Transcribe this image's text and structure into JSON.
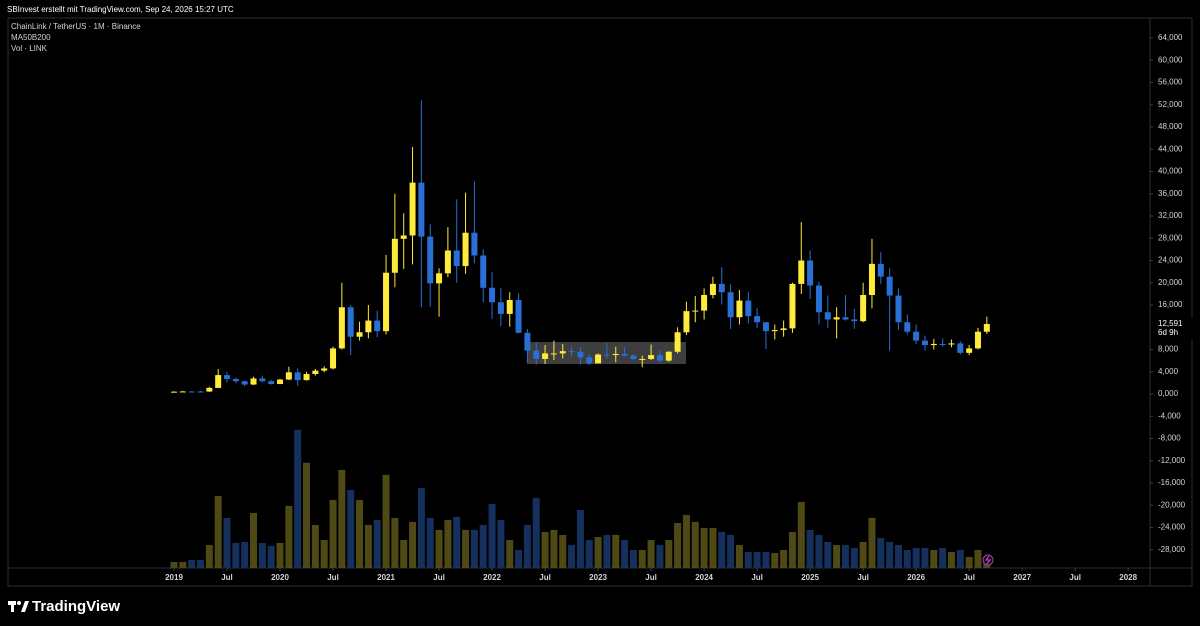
{
  "header": "SBInvest erstellt mit TradingView.com, Sep 24, 2026 15:27 UTC",
  "brand": "TradingView",
  "chart_data": {
    "type": "candlestick",
    "title": "ChainLink / TetherUS · 1M · Binance",
    "indicators": [
      "MA50B200",
      "Vol · LINK"
    ],
    "up_color": "#ffeb3b",
    "down_color": "#2a6fd6",
    "volume_up_color": "#4f4a15",
    "volume_down_color": "#16305e",
    "x": [
      "2019-01",
      "2019-02",
      "2019-03",
      "2019-04",
      "2019-05",
      "2019-06",
      "2019-07",
      "2019-08",
      "2019-09",
      "2019-10",
      "2019-11",
      "2019-12",
      "2020-01",
      "2020-02",
      "2020-03",
      "2020-04",
      "2020-05",
      "2020-06",
      "2020-07",
      "2020-08",
      "2020-09",
      "2020-10",
      "2020-11",
      "2020-12",
      "2021-01",
      "2021-02",
      "2021-03",
      "2021-04",
      "2021-05",
      "2021-06",
      "2021-07",
      "2021-08",
      "2021-09",
      "2021-10",
      "2021-11",
      "2021-12",
      "2022-01",
      "2022-02",
      "2022-03",
      "2022-04",
      "2022-05",
      "2022-06",
      "2022-07",
      "2022-08",
      "2022-09",
      "2022-10",
      "2022-11",
      "2022-12",
      "2023-01",
      "2023-02",
      "2023-03",
      "2023-04",
      "2023-05",
      "2023-06",
      "2023-07",
      "2023-08",
      "2023-09",
      "2023-10",
      "2023-11",
      "2023-12",
      "2024-01",
      "2024-02",
      "2024-03",
      "2024-04",
      "2024-05",
      "2024-06",
      "2024-07",
      "2024-08",
      "2024-09",
      "2024-10",
      "2024-11",
      "2024-12",
      "2025-01",
      "2025-02",
      "2025-03",
      "2025-04",
      "2025-05",
      "2025-06",
      "2025-07",
      "2025-08",
      "2025-09",
      "2025-10",
      "2025-11",
      "2025-12",
      "2026-01",
      "2026-02",
      "2026-03",
      "2026-04",
      "2026-05",
      "2026-06",
      "2026-07",
      "2026-08",
      "2026-09"
    ],
    "open": [
      300,
      420,
      460,
      450,
      440,
      1100,
      3400,
      2700,
      2300,
      1700,
      2800,
      2300,
      1800,
      2600,
      3900,
      2500,
      3600,
      4200,
      4600,
      8200,
      15600,
      10300,
      11100,
      13200,
      11300,
      21800,
      27900,
      28500,
      38000,
      28300,
      19900,
      21700,
      25800,
      23000,
      29000,
      24900,
      19100,
      16500,
      14400,
      16900,
      11000,
      7800,
      6300,
      7300,
      7300,
      7700,
      7600,
      6600,
      5500,
      7100,
      7000,
      7200,
      6900,
      6300,
      6300,
      7000,
      6000,
      7600,
      11100,
      14900,
      15000,
      17800,
      19800,
      18300,
      13800,
      16800,
      14000,
      12900,
      11300,
      11500,
      11800,
      19800,
      24000,
      19500,
      14700,
      13400,
      13800,
      13400,
      13100,
      17800,
      23400,
      21100,
      17700,
      12900,
      11200,
      9600,
      8800,
      9000,
      8900,
      9100,
      7400,
      8200,
      11200
    ],
    "high": [
      500,
      560,
      520,
      560,
      1300,
      4500,
      4000,
      2900,
      2400,
      3100,
      3300,
      2500,
      2700,
      4900,
      4600,
      4000,
      4500,
      5000,
      8500,
      20000,
      16000,
      13000,
      16000,
      15000,
      25000,
      36000,
      32500,
      44400,
      52800,
      30500,
      22600,
      30000,
      35000,
      36200,
      38200,
      26000,
      21900,
      19000,
      18300,
      18100,
      11700,
      9200,
      8800,
      9600,
      9000,
      8500,
      8400,
      7100,
      7300,
      9200,
      8500,
      8400,
      7100,
      6900,
      8900,
      7800,
      7700,
      12000,
      16600,
      17600,
      19000,
      21100,
      22800,
      19700,
      18700,
      18400,
      15400,
      12900,
      12500,
      13200,
      20000,
      30900,
      25800,
      20200,
      17700,
      15600,
      17800,
      15300,
      20000,
      27900,
      25500,
      22700,
      19000,
      14300,
      12500,
      10500,
      9900,
      10000,
      9800,
      9500,
      8800,
      11900,
      13900
    ],
    "low": [
      250,
      380,
      400,
      400,
      380,
      1050,
      2100,
      1950,
      1350,
      1600,
      2100,
      1700,
      1750,
      2500,
      1500,
      2400,
      3300,
      3900,
      4400,
      8000,
      7000,
      9600,
      10000,
      10200,
      10700,
      19200,
      22500,
      23300,
      15600,
      15700,
      13900,
      21000,
      20000,
      21600,
      23500,
      16500,
      13500,
      12200,
      12100,
      10900,
      5700,
      5300,
      5400,
      6100,
      6400,
      6700,
      5300,
      5200,
      5500,
      6400,
      5700,
      6800,
      6100,
      4800,
      6100,
      5600,
      5800,
      7300,
      10600,
      12900,
      13400,
      17200,
      16100,
      11700,
      12500,
      12700,
      11800,
      8100,
      9800,
      10300,
      11000,
      18000,
      17100,
      12500,
      11900,
      10000,
      13200,
      11700,
      12900,
      15400,
      19800,
      7800,
      11500,
      10700,
      9000,
      7800,
      8000,
      8500,
      8400,
      7100,
      7000,
      8000,
      10800
    ],
    "close": [
      420,
      460,
      450,
      440,
      1100,
      3400,
      2700,
      2300,
      1700,
      2800,
      2300,
      1800,
      2600,
      3900,
      2500,
      3600,
      4200,
      4600,
      8200,
      15600,
      10300,
      11100,
      13200,
      11300,
      21800,
      27900,
      28500,
      38000,
      28300,
      19900,
      21700,
      25800,
      23000,
      29000,
      24900,
      19100,
      16500,
      14400,
      16900,
      11000,
      7800,
      6300,
      7300,
      7300,
      7700,
      7600,
      6600,
      5500,
      7100,
      7000,
      7200,
      6900,
      6300,
      6300,
      7000,
      6000,
      7600,
      11100,
      14900,
      15000,
      17800,
      19800,
      18300,
      13800,
      16800,
      14000,
      12900,
      11300,
      11500,
      11800,
      19800,
      24000,
      19500,
      14700,
      13400,
      13800,
      13400,
      13100,
      17800,
      23400,
      21100,
      17700,
      12900,
      11200,
      9600,
      8800,
      9000,
      8900,
      9100,
      7400,
      8200,
      11200,
      12591
    ],
    "volume": [
      1080,
      1080,
      1440,
      1440,
      4140,
      12960,
      9000,
      4500,
      4680,
      9900,
      4500,
      3960,
      4500,
      11160,
      24840,
      18900,
      7740,
      5040,
      12240,
      17640,
      14040,
      12240,
      7740,
      8640,
      16740,
      9000,
      5040,
      8280,
      14400,
      9000,
      6840,
      8640,
      9180,
      6840,
      6840,
      7740,
      11520,
      8640,
      5040,
      3240,
      7740,
      12600,
      6480,
      6840,
      5940,
      4140,
      10440,
      5040,
      5580,
      5940,
      5940,
      5040,
      3240,
      3240,
      5040,
      4140,
      5040,
      8100,
      9540,
      8280,
      7200,
      7200,
      6480,
      5940,
      4140,
      2880,
      2880,
      2880,
      2700,
      3240,
      6480,
      11880,
      6840,
      5940,
      4680,
      4140,
      4140,
      3600,
      4680,
      9000,
      5400,
      4680,
      4140,
      3240,
      3600,
      3600,
      3240,
      3600,
      2880,
      3240,
      1980,
      3240,
      1440
    ],
    "ylim": [
      -31280,
      67600
    ],
    "yticks": [
      {
        "value": 64000,
        "label": "64,000"
      },
      {
        "value": 60000,
        "label": "60,000"
      },
      {
        "value": 56000,
        "label": "56,000"
      },
      {
        "value": 52000,
        "label": "52,000"
      },
      {
        "value": 48000,
        "label": "48,000"
      },
      {
        "value": 44000,
        "label": "44,000"
      },
      {
        "value": 40000,
        "label": "40,000"
      },
      {
        "value": 36000,
        "label": "36,000"
      },
      {
        "value": 32000,
        "label": "32,000"
      },
      {
        "value": 28000,
        "label": "28,000"
      },
      {
        "value": 24000,
        "label": "24,000"
      },
      {
        "value": 20000,
        "label": "20,000"
      },
      {
        "value": 16000,
        "label": "16,000"
      },
      {
        "value": 8000,
        "label": "8,000"
      },
      {
        "value": 4000,
        "label": "4,000"
      },
      {
        "value": 0,
        "label": "0,000"
      },
      {
        "value": -4000,
        "label": "-4,000"
      },
      {
        "value": -8000,
        "label": "-8,000"
      },
      {
        "value": -12000,
        "label": "-12,000"
      },
      {
        "value": -16000,
        "label": "-16,000"
      },
      {
        "value": -20000,
        "label": "-20,000"
      },
      {
        "value": -24000,
        "label": "-24,000"
      },
      {
        "value": -28000,
        "label": "-28,000"
      }
    ],
    "xticks": [
      {
        "value": "2019-01",
        "label": "2019"
      },
      {
        "value": "2019-07",
        "label": "Jul"
      },
      {
        "value": "2020-01",
        "label": "2020"
      },
      {
        "value": "2020-07",
        "label": "Jul"
      },
      {
        "value": "2021-01",
        "label": "2021"
      },
      {
        "value": "2021-07",
        "label": "Jul"
      },
      {
        "value": "2022-01",
        "label": "2022"
      },
      {
        "value": "2022-07",
        "label": "Jul"
      },
      {
        "value": "2023-01",
        "label": "2023"
      },
      {
        "value": "2023-07",
        "label": "Jul"
      },
      {
        "value": "2024-01",
        "label": "2024"
      },
      {
        "value": "2024-07",
        "label": "Jul"
      },
      {
        "value": "2025-01",
        "label": "2025"
      },
      {
        "value": "2025-07",
        "label": "Jul"
      },
      {
        "value": "2026-01",
        "label": "2026"
      },
      {
        "value": "2026-07",
        "label": "Jul"
      },
      {
        "value": "2027-01",
        "label": "2027"
      },
      {
        "value": "2027-07",
        "label": "Jul"
      },
      {
        "value": "2028-01",
        "label": "2028"
      }
    ],
    "last_price": {
      "value": 12591,
      "label": "12,591"
    },
    "countdown": "6d 9h"
  }
}
